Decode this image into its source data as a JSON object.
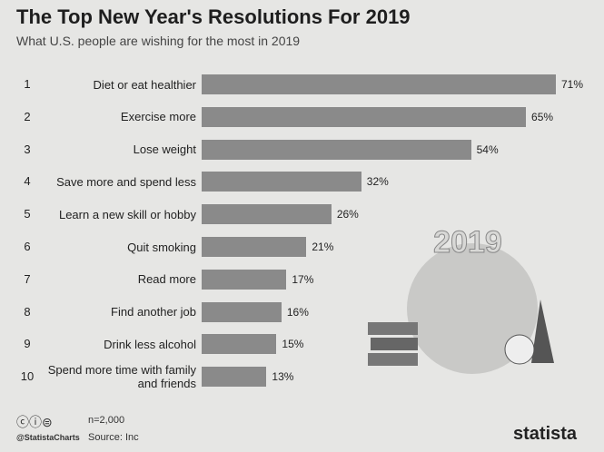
{
  "chart_data": {
    "type": "bar",
    "orientation": "horizontal",
    "title": "The Top New Year's Resolutions For 2019",
    "subtitle": "What U.S. people are wishing for the most in 2019",
    "ranks": [
      1,
      2,
      3,
      4,
      5,
      6,
      7,
      8,
      9,
      10
    ],
    "categories": [
      "Diet or eat healthier",
      "Exercise more",
      "Lose weight",
      "Save more and spend less",
      "Learn a new skill or hobby",
      "Quit smoking",
      "Read more",
      "Find another job",
      "Drink less alcohol",
      "Spend more time with family and friends"
    ],
    "values": [
      71,
      65,
      54,
      32,
      26,
      21,
      17,
      16,
      15,
      13
    ],
    "value_labels": [
      "71%",
      "65%",
      "54%",
      "32%",
      "26%",
      "21%",
      "17%",
      "16%",
      "15%",
      "13%"
    ],
    "color": "#8a8a8a"
  },
  "illustration_text": "2019",
  "footer": {
    "sample": "n=2,000",
    "handle": "@StatistaCharts",
    "source": "Source: Inc",
    "brand": "statista"
  }
}
